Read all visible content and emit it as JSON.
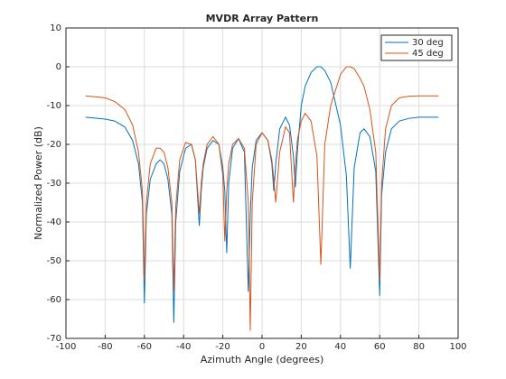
{
  "chart_data": {
    "type": "line",
    "title": "MVDR Array Pattern",
    "x_label": "Azimuth Angle (degrees)",
    "y_label": "Normalized Power (dB)",
    "x": [
      -90,
      -80,
      -75,
      -70,
      -66,
      -63,
      -61,
      -60,
      -59,
      -57,
      -54,
      -52,
      -50,
      -48,
      -46,
      -45,
      -44,
      -42,
      -39,
      -36,
      -34,
      -32,
      -31,
      -30,
      -28,
      -25,
      -22,
      -20,
      -19,
      -18,
      -17,
      -15,
      -12,
      -9,
      -7,
      -6,
      -5,
      -3,
      0,
      3,
      5,
      6,
      7,
      9,
      12,
      14,
      16,
      17,
      18,
      20,
      22,
      25,
      28,
      30,
      32,
      35,
      40,
      43,
      45,
      47,
      50,
      52,
      55,
      58,
      60,
      61,
      63,
      66,
      70,
      75,
      80,
      90
    ],
    "series": [
      {
        "name": "30 deg",
        "color": "#0072bd",
        "values": [
          -13,
          -13.5,
          -14,
          -15.5,
          -19,
          -25,
          -35,
          -61,
          -38,
          -29,
          -25,
          -24,
          -25,
          -29,
          -38,
          -66,
          -40,
          -27,
          -21,
          -20,
          -24,
          -41,
          -32,
          -26,
          -21,
          -19,
          -20,
          -26,
          -32,
          -48,
          -30,
          -21,
          -18.5,
          -22,
          -58,
          -38,
          -26,
          -19,
          -17,
          -19,
          -25,
          -32,
          -25,
          -16,
          -13,
          -15,
          -23,
          -31,
          -22,
          -10,
          -5,
          -1.5,
          0,
          0,
          -1,
          -4,
          -15,
          -28,
          -52,
          -26,
          -17,
          -16,
          -18,
          -27,
          -59,
          -33,
          -22,
          -16,
          -14,
          -13.3,
          -13,
          -13
        ]
      },
      {
        "name": "45 deg",
        "color": "#d95319",
        "values": [
          -7.5,
          -8,
          -9,
          -11,
          -15,
          -22,
          -32,
          -55,
          -35,
          -25,
          -21,
          -21,
          -22,
          -26,
          -35,
          -58,
          -36,
          -24,
          -19.5,
          -20,
          -24,
          -38,
          -30,
          -25,
          -20,
          -18,
          -20,
          -28,
          -45,
          -32,
          -25,
          -20,
          -18.5,
          -21,
          -35,
          -68,
          -35,
          -20,
          -17,
          -19,
          -24,
          -29,
          -35,
          -22,
          -15.5,
          -17,
          -35,
          -26,
          -19,
          -14,
          -12,
          -14,
          -23,
          -51,
          -20,
          -10,
          -2,
          0,
          0,
          -0.5,
          -3,
          -5,
          -11,
          -22,
          -55,
          -30,
          -16,
          -10,
          -8,
          -7.6,
          -7.5,
          -7.5
        ]
      }
    ],
    "xlim": [
      -100,
      100
    ],
    "xticks": [
      -100,
      -80,
      -60,
      -40,
      -20,
      0,
      20,
      40,
      60,
      80,
      100
    ],
    "ylim": [
      -70,
      10
    ],
    "yticks": [
      -70,
      -60,
      -50,
      -40,
      -30,
      -20,
      -10,
      0,
      10
    ],
    "grid": true,
    "legend": "top-right"
  }
}
